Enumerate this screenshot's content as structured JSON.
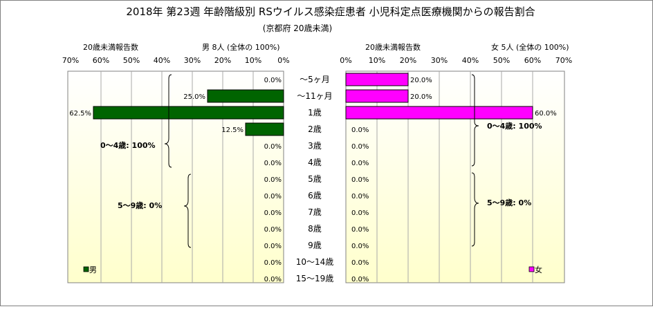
{
  "chart_data": [
    {
      "type": "bar",
      "orientation": "horizontal",
      "direction": "right-to-left",
      "title": "2018年 第23週 年齢階級別 RSウイルス感染症患者 小児科定点医療機関からの報告割合",
      "subtitle": "(京都府 20歳未満)",
      "header_left": "20歳未満報告数",
      "header_right": "男 8人 (全体の 100%)",
      "categories": [
        "～5ヶ月",
        "～11ヶ月",
        "1歳",
        "2歳",
        "3歳",
        "4歳",
        "5歳",
        "6歳",
        "7歳",
        "8歳",
        "9歳",
        "10～14歳",
        "15～19歳"
      ],
      "series": [
        {
          "name": "男",
          "color": "#006400",
          "values": [
            0.0,
            25.0,
            62.5,
            12.5,
            0.0,
            0.0,
            0.0,
            0.0,
            0.0,
            0.0,
            0.0,
            0.0,
            0.0
          ]
        }
      ],
      "data_labels": [
        "0.0%",
        "25.0%",
        "62.5%",
        "12.5%",
        "0.0%",
        "0.0%",
        "0.0%",
        "0.0%",
        "0.0%",
        "0.0%",
        "0.0%",
        "0.0%",
        "0.0%"
      ],
      "xlim": [
        0,
        70
      ],
      "x_ticks": [
        "70%",
        "60%",
        "50%",
        "40%",
        "30%",
        "20%",
        "10%",
        "0%"
      ],
      "annotations": [
        "0～4歳: 100%",
        "5～9歳: 0%"
      ]
    },
    {
      "type": "bar",
      "orientation": "horizontal",
      "direction": "left-to-right",
      "header_left": "20歳未満報告数",
      "header_right": "女 5人 (全体の 100%)",
      "categories": [
        "～5ヶ月",
        "～11ヶ月",
        "1歳",
        "2歳",
        "3歳",
        "4歳",
        "5歳",
        "6歳",
        "7歳",
        "8歳",
        "9歳",
        "10～14歳",
        "15～19歳"
      ],
      "series": [
        {
          "name": "女",
          "color": "#ff00ff",
          "values": [
            20.0,
            20.0,
            60.0,
            0.0,
            0.0,
            0.0,
            0.0,
            0.0,
            0.0,
            0.0,
            0.0,
            0.0,
            0.0
          ]
        }
      ],
      "data_labels": [
        "20.0%",
        "20.0%",
        "60.0%",
        "0.0%",
        "0.0%",
        "0.0%",
        "0.0%",
        "0.0%",
        "0.0%",
        "0.0%",
        "0.0%",
        "0.0%",
        "0.0%"
      ],
      "xlim": [
        0,
        70
      ],
      "x_ticks": [
        "0%",
        "10%",
        "20%",
        "30%",
        "40%",
        "50%",
        "60%",
        "70%"
      ],
      "annotations": [
        "0～4歳: 100%",
        "5～9歳: 0%"
      ]
    }
  ],
  "colors": {
    "male_bar": "#006400",
    "female_bar": "#ff00ff",
    "plot_bg_top": "#ffffff",
    "plot_bg_bottom": "#ffffcc",
    "grid": "#a0a0a0"
  }
}
